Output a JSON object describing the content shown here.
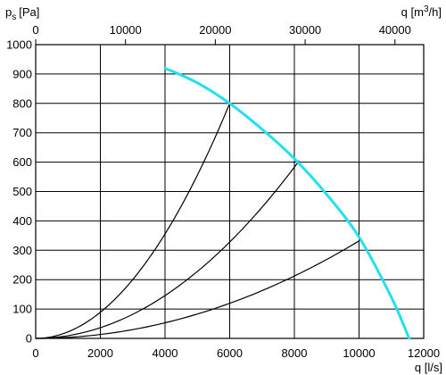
{
  "chart_data": {
    "type": "line",
    "title": "",
    "y_axis": {
      "label_main": "p",
      "label_sub": "s",
      "label_unit": "[Pa]",
      "lim": [
        0,
        1000
      ],
      "ticks": [
        0,
        100,
        200,
        300,
        400,
        500,
        600,
        700,
        800,
        900,
        1000
      ]
    },
    "x_axis_bottom": {
      "label": "q [l/s]",
      "lim": [
        0,
        12000
      ],
      "ticks": [
        0,
        2000,
        4000,
        6000,
        8000,
        10000,
        12000
      ]
    },
    "x_axis_top": {
      "label_main": "q [m",
      "label_sup": "3",
      "label_tail": "/h]",
      "lim": [
        0,
        43200
      ],
      "ticks": [
        0,
        10000,
        20000,
        30000,
        40000
      ]
    },
    "grid": true,
    "fan_curve": {
      "color": "#22e0f0",
      "x": [
        4000,
        5000,
        6000,
        7000,
        8000,
        9000,
        10000,
        11000,
        11550
      ],
      "y": [
        920,
        870,
        800,
        712,
        612,
        490,
        345,
        140,
        0
      ]
    },
    "system_curves": [
      {
        "color": "#000000",
        "operating_point": [
          6000,
          800
        ]
      },
      {
        "color": "#000000",
        "operating_point": [
          8150,
          605
        ]
      },
      {
        "color": "#000000",
        "operating_point": [
          10050,
          335
        ]
      }
    ]
  }
}
